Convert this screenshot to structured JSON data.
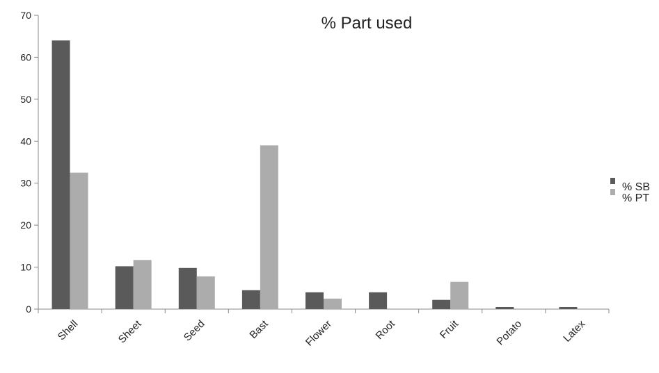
{
  "chart_data": {
    "type": "bar",
    "title": "% Part used",
    "xlabel": "",
    "ylabel": "",
    "categories": [
      "Shell",
      "Sheet",
      "Seed",
      "Bast",
      "Flower",
      "Root",
      "Fruit",
      "Potato",
      "Latex"
    ],
    "series": [
      {
        "name": "% SB",
        "color": "#5a5a5a",
        "values": [
          64,
          10.2,
          9.8,
          4.5,
          4.0,
          4.0,
          2.2,
          0.5,
          0.5
        ]
      },
      {
        "name": "% PT",
        "color": "#acacac",
        "values": [
          32.5,
          11.7,
          7.8,
          39,
          2.5,
          0,
          6.5,
          0,
          0
        ]
      }
    ],
    "ylim": [
      0,
      70
    ],
    "yticks": [
      0,
      10,
      20,
      30,
      40,
      50,
      60,
      70
    ],
    "grid": false,
    "legend_position": "right"
  }
}
